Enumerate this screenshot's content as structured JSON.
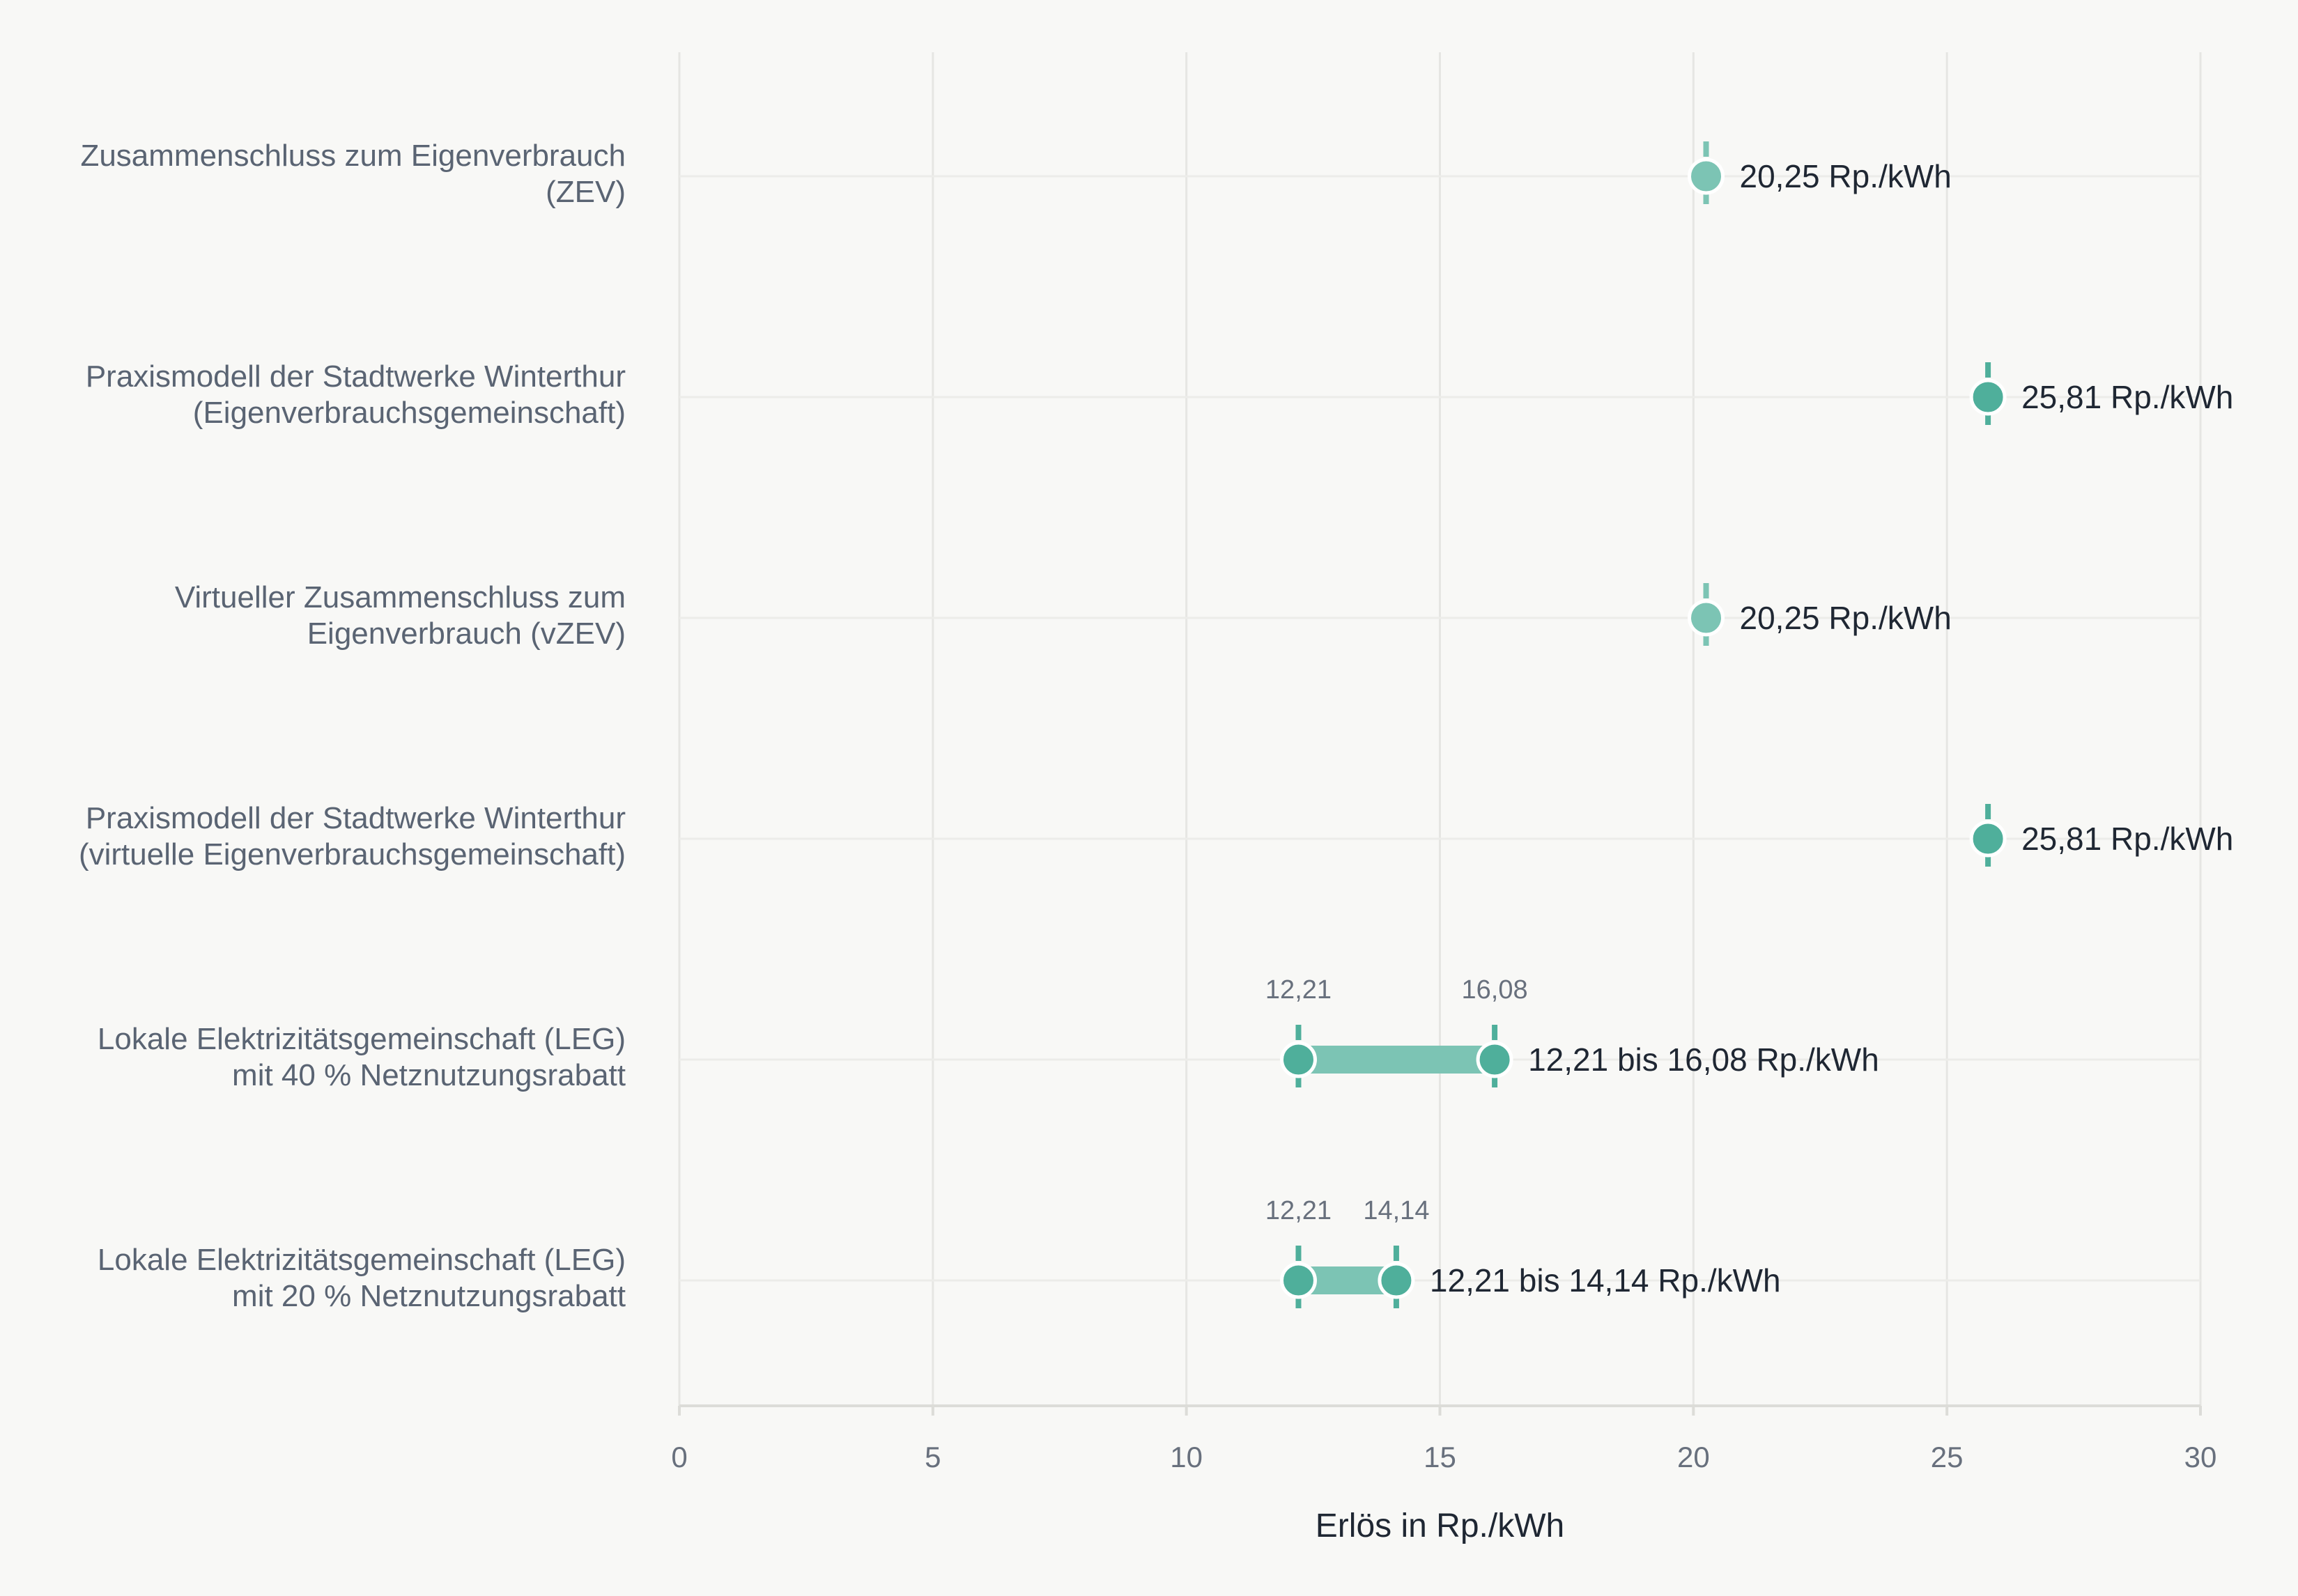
{
  "chart_data": {
    "type": "range",
    "xlabel": "Erlös in Rp./kWh",
    "xlim": [
      0,
      30
    ],
    "xticks": [
      "0",
      "5",
      "10",
      "15",
      "20",
      "25",
      "30"
    ],
    "grid": true,
    "colors": {
      "light": "#7cc4b4",
      "dark": "#4faf9b",
      "bar": "#7cc4b4"
    },
    "rows": [
      {
        "category": [
          "Zusammenschluss zum Eigenverbrauch",
          "(ZEV)"
        ],
        "min": 20.25,
        "max": 20.25,
        "value_label": "20,25 Rp./kWh",
        "min_label": "",
        "max_label": "",
        "color": "light"
      },
      {
        "category": [
          "Praxismodell der Stadtwerke Winterthur",
          "(Eigenverbrauchsgemeinschaft)"
        ],
        "min": 25.81,
        "max": 25.81,
        "value_label": "25,81 Rp./kWh",
        "min_label": "",
        "max_label": "",
        "color": "dark"
      },
      {
        "category": [
          "Virtueller Zusammenschluss zum",
          "Eigenverbrauch (vZEV)"
        ],
        "min": 20.25,
        "max": 20.25,
        "value_label": "20,25 Rp./kWh",
        "min_label": "",
        "max_label": "",
        "color": "light"
      },
      {
        "category": [
          "Praxismodell der Stadtwerke Winterthur",
          "(virtuelle Eigenverbrauchsgemeinschaft)"
        ],
        "min": 25.81,
        "max": 25.81,
        "value_label": "25,81 Rp./kWh",
        "min_label": "",
        "max_label": "",
        "color": "dark"
      },
      {
        "category": [
          "Lokale Elektrizitätsgemeinschaft (LEG)",
          "mit 40 % Netznutzungsrabatt"
        ],
        "min": 12.21,
        "max": 16.08,
        "value_label": "12,21 bis 16,08 Rp./kWh",
        "min_label": "12,21",
        "max_label": "16,08",
        "color": "dark"
      },
      {
        "category": [
          "Lokale Elektrizitätsgemeinschaft (LEG)",
          "mit 20 % Netznutzungsrabatt"
        ],
        "min": 12.21,
        "max": 14.14,
        "value_label": "12,21 bis 14,14 Rp./kWh",
        "min_label": "12,21",
        "max_label": "14,14",
        "color": "dark"
      }
    ]
  }
}
